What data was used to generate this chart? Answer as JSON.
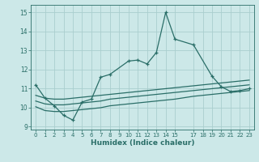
{
  "xlabel": "Humidex (Indice chaleur)",
  "bg_color": "#cce8e8",
  "grid_color": "#aacece",
  "line_color": "#2a6e68",
  "xlim": [
    -0.5,
    23.5
  ],
  "ylim": [
    8.85,
    15.4
  ],
  "yticks": [
    9,
    10,
    11,
    12,
    13,
    14,
    15
  ],
  "xticks": [
    0,
    1,
    2,
    3,
    4,
    5,
    6,
    7,
    8,
    9,
    10,
    11,
    12,
    13,
    14,
    15,
    17,
    18,
    19,
    20,
    21,
    22,
    23
  ],
  "line1_x": [
    0,
    1,
    2,
    3,
    4,
    5,
    6,
    7,
    8,
    10,
    11,
    12,
    13,
    14,
    15,
    17,
    19,
    20,
    21,
    22,
    23
  ],
  "line1_y": [
    11.2,
    10.5,
    10.1,
    9.6,
    9.35,
    10.3,
    10.45,
    11.6,
    11.75,
    12.45,
    12.5,
    12.3,
    12.9,
    15.0,
    13.6,
    13.3,
    11.65,
    11.1,
    10.85,
    10.9,
    11.0
  ],
  "line2_x": [
    0,
    1,
    2,
    3,
    4,
    5,
    6,
    7,
    8,
    9,
    10,
    11,
    12,
    13,
    14,
    15,
    17,
    18,
    19,
    20,
    21,
    22,
    23
  ],
  "line2_y": [
    10.65,
    10.5,
    10.45,
    10.45,
    10.5,
    10.55,
    10.6,
    10.65,
    10.7,
    10.75,
    10.8,
    10.85,
    10.9,
    10.95,
    11.0,
    11.05,
    11.15,
    11.2,
    11.25,
    11.3,
    11.35,
    11.4,
    11.45
  ],
  "line3_x": [
    0,
    1,
    2,
    3,
    4,
    5,
    6,
    7,
    8,
    9,
    10,
    11,
    12,
    13,
    14,
    15,
    17,
    18,
    19,
    20,
    21,
    22,
    23
  ],
  "line3_y": [
    10.35,
    10.2,
    10.15,
    10.15,
    10.2,
    10.25,
    10.3,
    10.35,
    10.45,
    10.5,
    10.55,
    10.6,
    10.65,
    10.7,
    10.75,
    10.8,
    10.9,
    10.95,
    11.0,
    11.05,
    11.1,
    11.15,
    11.2
  ],
  "line4_x": [
    0,
    1,
    2,
    3,
    4,
    5,
    6,
    7,
    8,
    9,
    10,
    11,
    12,
    13,
    14,
    15,
    17,
    18,
    19,
    20,
    21,
    22,
    23
  ],
  "line4_y": [
    10.05,
    9.85,
    9.8,
    9.8,
    9.85,
    9.9,
    9.95,
    10.0,
    10.1,
    10.15,
    10.2,
    10.25,
    10.3,
    10.35,
    10.4,
    10.45,
    10.6,
    10.65,
    10.7,
    10.75,
    10.8,
    10.85,
    10.9
  ]
}
